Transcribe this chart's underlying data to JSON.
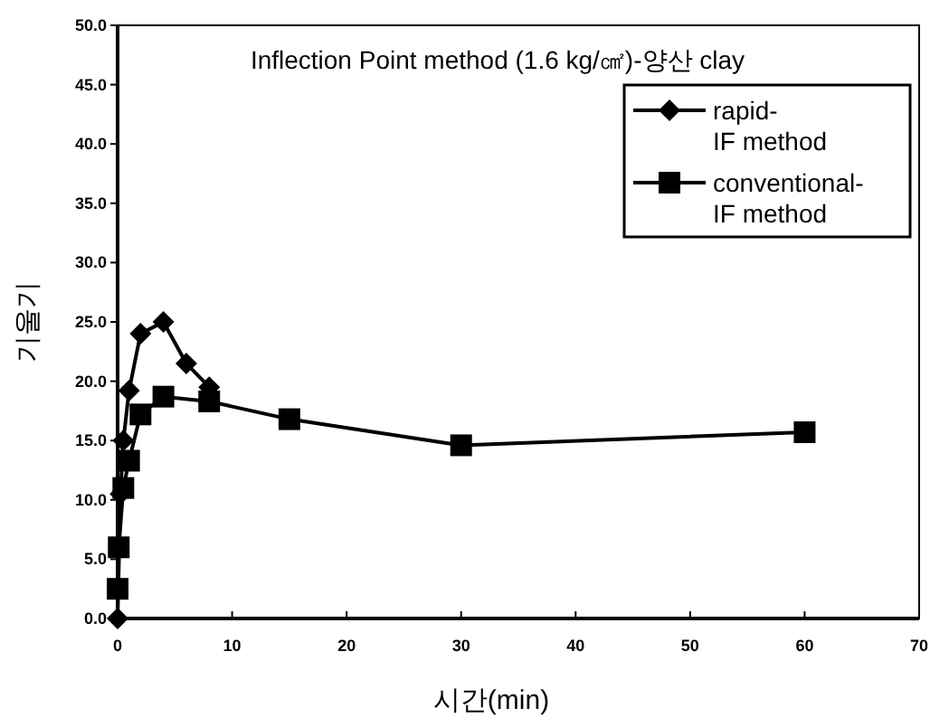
{
  "chart_data": {
    "type": "line",
    "title": "Inflection Point method  (1.6 kg/㎠)-양산 clay",
    "xlabel": "시간(min)",
    "ylabel": "기울기",
    "xlim": [
      0,
      70
    ],
    "xticks": [
      0,
      10,
      20,
      30,
      40,
      50,
      60,
      70
    ],
    "ylim": [
      0,
      50
    ],
    "yticks": [
      {
        "value": 0,
        "label": "0.0"
      },
      {
        "value": 5,
        "label": "5.0"
      },
      {
        "value": 10,
        "label": "10.0"
      },
      {
        "value": 15,
        "label": "15.0"
      },
      {
        "value": 20,
        "label": "20.0"
      },
      {
        "value": 25,
        "label": "25.0"
      },
      {
        "value": 30,
        "label": "30.0"
      },
      {
        "value": 35,
        "label": "35.0"
      },
      {
        "value": 40,
        "label": "40.0"
      },
      {
        "value": 45,
        "label": "45.0"
      },
      {
        "value": 50,
        "label": "50.0"
      }
    ],
    "legend": "top right",
    "grid": false,
    "line_style": "solid",
    "series": [
      {
        "name": "rapid-IF method",
        "color": "#000000",
        "marker": "diamond",
        "x": [
          0,
          0.25,
          0.5,
          1,
          2,
          4,
          6,
          8
        ],
        "values": [
          0,
          10.5,
          15,
          19.2,
          24,
          25,
          21.5,
          19.5
        ]
      },
      {
        "name": "conventional-IF method",
        "color": "#000000",
        "marker": "square",
        "x": [
          0,
          0.1,
          0.5,
          1,
          2,
          4,
          8,
          15,
          30,
          60
        ],
        "values": [
          2.5,
          6,
          11,
          13.3,
          17.2,
          18.7,
          18.3,
          16.8,
          14.6,
          15.7
        ]
      }
    ]
  }
}
